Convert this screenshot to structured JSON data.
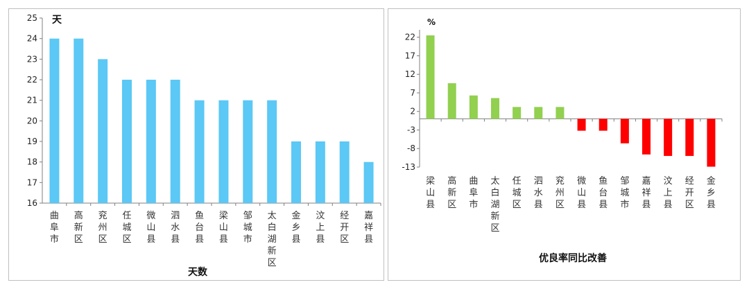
{
  "chart_data": [
    {
      "type": "bar",
      "ylabel": "天",
      "xlabel": "天数",
      "categories": [
        "曲阜市",
        "高新区",
        "兖州区",
        "任城区",
        "微山县",
        "泗水县",
        "鱼台县",
        "梁山县",
        "邹城市",
        "太白湖新区",
        "金乡县",
        "汶上县",
        "经开区",
        "嘉祥县"
      ],
      "values": [
        24,
        24,
        23,
        22,
        22,
        22,
        21,
        21,
        21,
        21,
        19,
        19,
        19,
        18
      ],
      "ylim": [
        16,
        25
      ],
      "yticks": [
        "16",
        "17",
        "18",
        "19",
        "20",
        "21",
        "22",
        "23",
        "24",
        "25"
      ],
      "color": "#5BC8F5",
      "grid": false
    },
    {
      "type": "bar",
      "ylabel": "%",
      "xlabel": "优良率同比改善",
      "categories": [
        "梁山县",
        "高新区",
        "曲阜市",
        "太白湖新区",
        "任城区",
        "泗水县",
        "兖州区",
        "微山县",
        "鱼台县",
        "邹城市",
        "嘉祥县",
        "汶上县",
        "经开区",
        "金乡县"
      ],
      "values": [
        22.5,
        9.6,
        6.3,
        5.6,
        3.2,
        3.2,
        3.2,
        -3.2,
        -3.2,
        -6.6,
        -9.6,
        -10.0,
        -10.0,
        -12.9
      ],
      "ylim": [
        -13,
        24
      ],
      "yticks": [
        "22",
        "17",
        "12",
        "7",
        "2",
        "-3",
        "-8",
        "-13"
      ],
      "positive_color": "#92D050",
      "negative_color": "#FF0000",
      "grid": false
    }
  ]
}
